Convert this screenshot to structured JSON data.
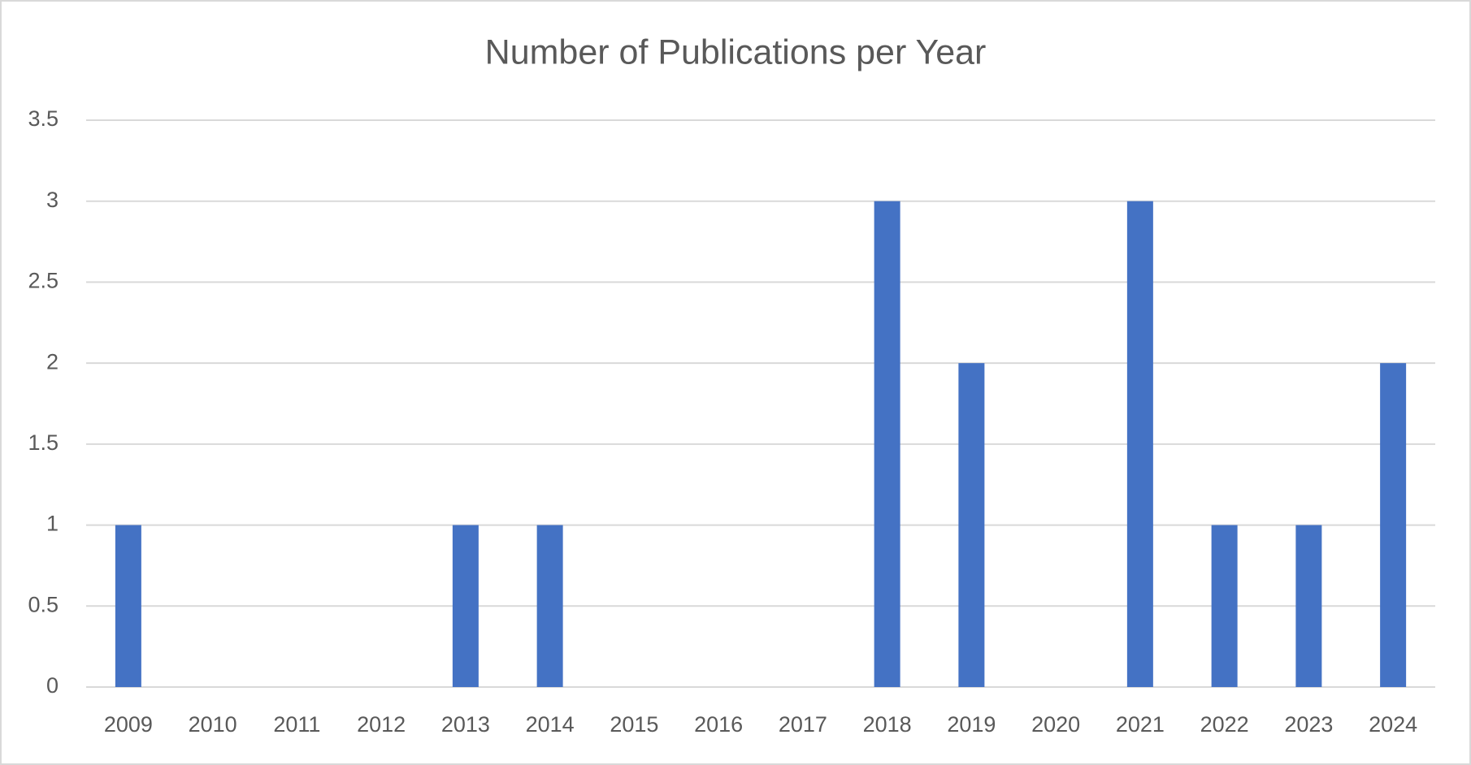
{
  "chart_data": {
    "type": "bar",
    "title": "Number of Publications per Year",
    "categories": [
      "2009",
      "2010",
      "2011",
      "2012",
      "2013",
      "2014",
      "2015",
      "2016",
      "2017",
      "2018",
      "2019",
      "2020",
      "2021",
      "2022",
      "2023",
      "2024"
    ],
    "values": [
      1,
      0,
      0,
      0,
      1,
      1,
      0,
      0,
      0,
      3,
      2,
      0,
      3,
      1,
      1,
      2
    ],
    "color": "#4472c4",
    "ylim": [
      0,
      3.5
    ],
    "yticks": [
      0,
      0.5,
      1,
      1.5,
      2,
      2.5,
      3,
      3.5
    ],
    "grid": true
  }
}
